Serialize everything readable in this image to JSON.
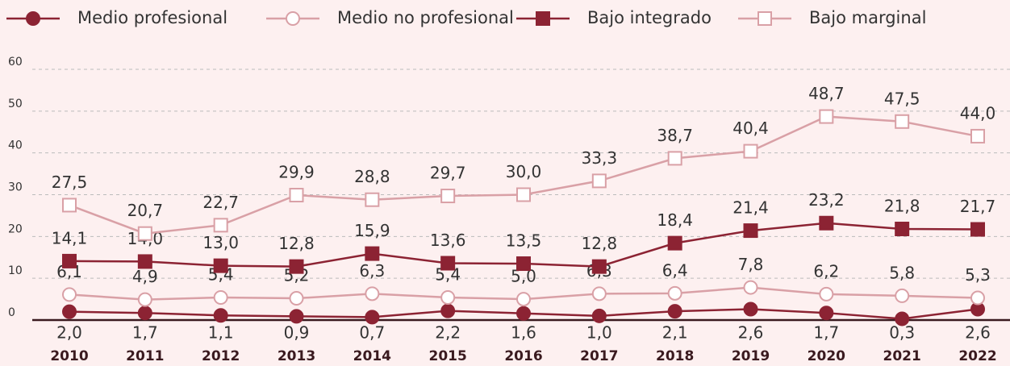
{
  "chart_data": {
    "type": "line",
    "categories": [
      "2010",
      "2011",
      "2012",
      "2013",
      "2014",
      "2015",
      "2016",
      "2017",
      "2018",
      "2019",
      "2020",
      "2021",
      "2022"
    ],
    "ylim": [
      0,
      60
    ],
    "yticks": [
      0,
      10,
      20,
      30,
      40,
      50,
      60
    ],
    "grid": true,
    "series": [
      {
        "name": "Medio profesional",
        "color": "#8c2333",
        "marker": "circle",
        "filled": true,
        "labels": "below_axis",
        "values": [
          2.0,
          1.7,
          1.1,
          0.9,
          0.7,
          2.2,
          1.6,
          1.0,
          2.1,
          2.6,
          1.7,
          0.3,
          2.6
        ],
        "value_labels": [
          "2,0",
          "1,7",
          "1,1",
          "0,9",
          "0,7",
          "2,2",
          "1,6",
          "1,0",
          "2,1",
          "2,6",
          "1,7",
          "0,3",
          "2,6"
        ]
      },
      {
        "name": "Medio no profesional",
        "color": "#d9a0a6",
        "marker": "circle",
        "filled": false,
        "labels": "above",
        "values": [
          6.1,
          4.9,
          5.4,
          5.2,
          6.3,
          5.4,
          5.0,
          6.3,
          6.4,
          7.8,
          6.2,
          5.8,
          5.3
        ],
        "value_labels": [
          "6,1",
          "4,9",
          "5,4",
          "5,2",
          "6,3",
          "5,4",
          "5,0",
          "6,3",
          "6,4",
          "7,8",
          "6,2",
          "5,8",
          "5,3"
        ]
      },
      {
        "name": "Bajo integrado",
        "color": "#8c2333",
        "marker": "square",
        "filled": true,
        "labels": "above",
        "values": [
          14.1,
          14.0,
          13.0,
          12.8,
          15.9,
          13.6,
          13.5,
          12.8,
          18.4,
          21.4,
          23.2,
          21.8,
          21.7
        ],
        "value_labels": [
          "14,1",
          "14,0",
          "13,0",
          "12,8",
          "15,9",
          "13,6",
          "13,5",
          "12,8",
          "18,4",
          "21,4",
          "23,2",
          "21,8",
          "21,7"
        ]
      },
      {
        "name": "Bajo marginal",
        "color": "#d9a0a6",
        "marker": "square",
        "filled": false,
        "labels": "above",
        "values": [
          27.5,
          20.7,
          22.7,
          29.9,
          28.8,
          29.7,
          30.0,
          33.3,
          38.7,
          40.4,
          48.7,
          47.5,
          44.0
        ],
        "value_labels": [
          "27,5",
          "20,7",
          "22,7",
          "29,9",
          "28,8",
          "29,7",
          "30,0",
          "33,3",
          "38,7",
          "40,4",
          "48,7",
          "47,5",
          "44,0"
        ]
      }
    ]
  }
}
